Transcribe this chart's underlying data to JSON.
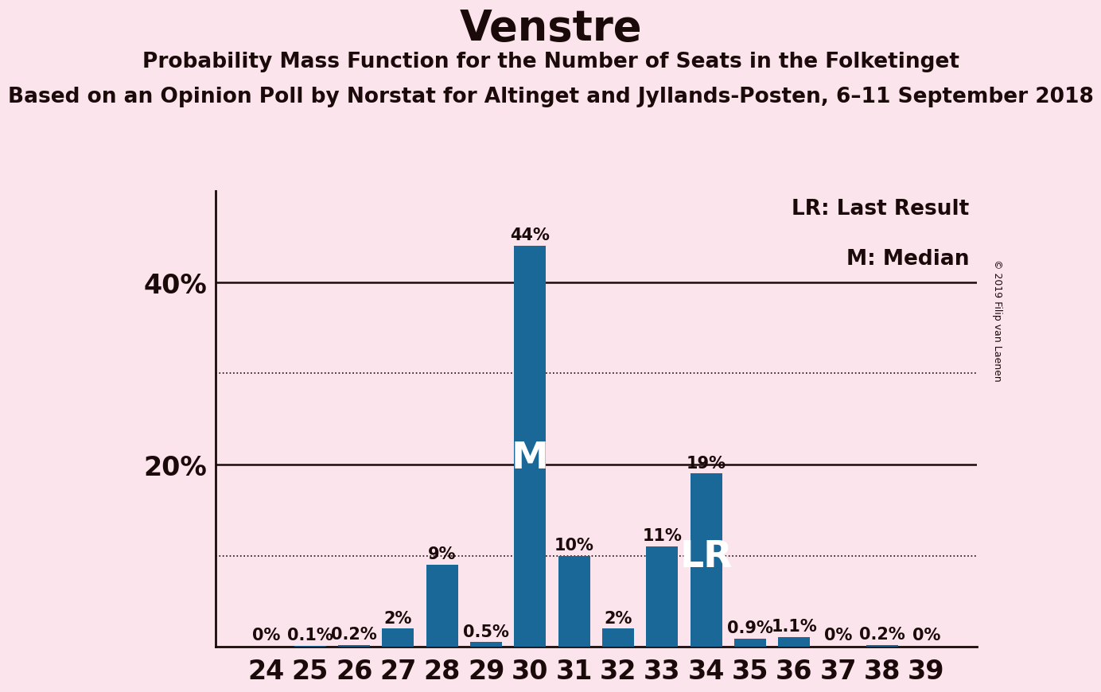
{
  "title": "Venstre",
  "subtitle": "Probability Mass Function for the Number of Seats in the Folketinget",
  "subtitle2": "Based on an Opinion Poll by Norstat for Altinget and Jyllands-Posten, 6–11 September 2018",
  "copyright": "© 2019 Filip van Laenen",
  "categories": [
    24,
    25,
    26,
    27,
    28,
    29,
    30,
    31,
    32,
    33,
    34,
    35,
    36,
    37,
    38,
    39
  ],
  "values": [
    0.0,
    0.1,
    0.2,
    2.0,
    9.0,
    0.5,
    44.0,
    10.0,
    2.0,
    11.0,
    19.0,
    0.9,
    1.1,
    0.0,
    0.2,
    0.0
  ],
  "labels": [
    "0%",
    "0.1%",
    "0.2%",
    "2%",
    "9%",
    "0.5%",
    "44%",
    "10%",
    "2%",
    "11%",
    "19%",
    "0.9%",
    "1.1%",
    "0%",
    "0.2%",
    "0%"
  ],
  "bar_color": "#1a6898",
  "background_color": "#fce4ec",
  "text_color": "#1a0a0a",
  "median_seat": 30,
  "lr_seat": 34,
  "ylim": [
    0,
    50
  ],
  "solid_lines": [
    20,
    40
  ],
  "dotted_lines": [
    10,
    30
  ],
  "legend_lr": "LR: Last Result",
  "legend_m": "M: Median",
  "title_fontsize": 38,
  "subtitle_fontsize": 19,
  "subtitle2_fontsize": 19,
  "axis_tick_fontsize": 24,
  "bar_label_fontsize": 15,
  "median_label_fontsize": 34,
  "lr_label_fontsize": 34,
  "legend_fontsize": 19,
  "copyright_fontsize": 9
}
